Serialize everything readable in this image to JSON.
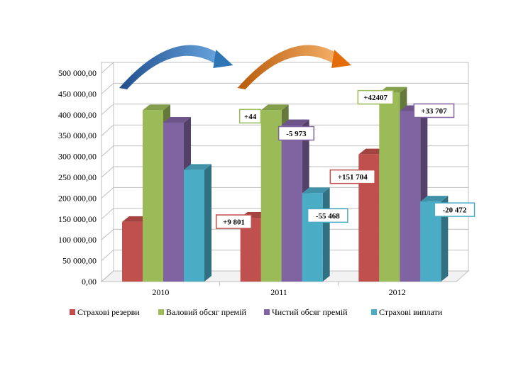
{
  "chart_data": {
    "type": "bar",
    "categories": [
      "2010",
      "2011",
      "2012"
    ],
    "series": [
      {
        "name": "Страхові резерви",
        "color": "#c0504d",
        "values": [
          143000,
          153000,
          305000
        ]
      },
      {
        "name": "Валовий обсяг премій",
        "color": "#9bbb59",
        "values": [
          411000,
          411000,
          453000
        ]
      },
      {
        "name": "Чистий обсяг премій",
        "color": "#8064a2",
        "values": [
          381000,
          375000,
          409000
        ]
      },
      {
        "name": "Страхові виплати",
        "color": "#4bacc6",
        "values": [
          268000,
          212000,
          192000
        ]
      }
    ],
    "ylim": [
      0,
      500000
    ],
    "yticks": [
      "0,00",
      "50 000,00",
      "100 000,00",
      "150 000,00",
      "200 000,00",
      "250 000,00",
      "300 000,00",
      "350 000,00",
      "400 000,00",
      "450 000,00",
      "500 000,00"
    ],
    "legend_position": "bottom",
    "grid": true,
    "annotations": [
      {
        "text": "+9 801",
        "category": 1,
        "series": 0,
        "border": "#c0504d"
      },
      {
        "text": "+44",
        "category": 1,
        "series": 1,
        "border": "#9bbb59"
      },
      {
        "text": "-5 973",
        "category": 1,
        "series": 2,
        "border": "#8064a2"
      },
      {
        "text": "-55 468",
        "category": 1,
        "series": 3,
        "border": "#4bacc6"
      },
      {
        "text": "+151 704",
        "category": 2,
        "series": 0,
        "border": "#c0504d"
      },
      {
        "text": "+42407",
        "category": 2,
        "series": 1,
        "border": "#9bbb59"
      },
      {
        "text": "+33 707",
        "category": 2,
        "series": 2,
        "border": "#8064a2"
      },
      {
        "text": "-20 472",
        "category": 2,
        "series": 3,
        "border": "#4bacc6"
      }
    ],
    "arrows": [
      {
        "from_category": 0,
        "to_category": 1,
        "color": "#2e75b6"
      },
      {
        "from_category": 1,
        "to_category": 2,
        "color": "#e46c0a"
      }
    ]
  }
}
